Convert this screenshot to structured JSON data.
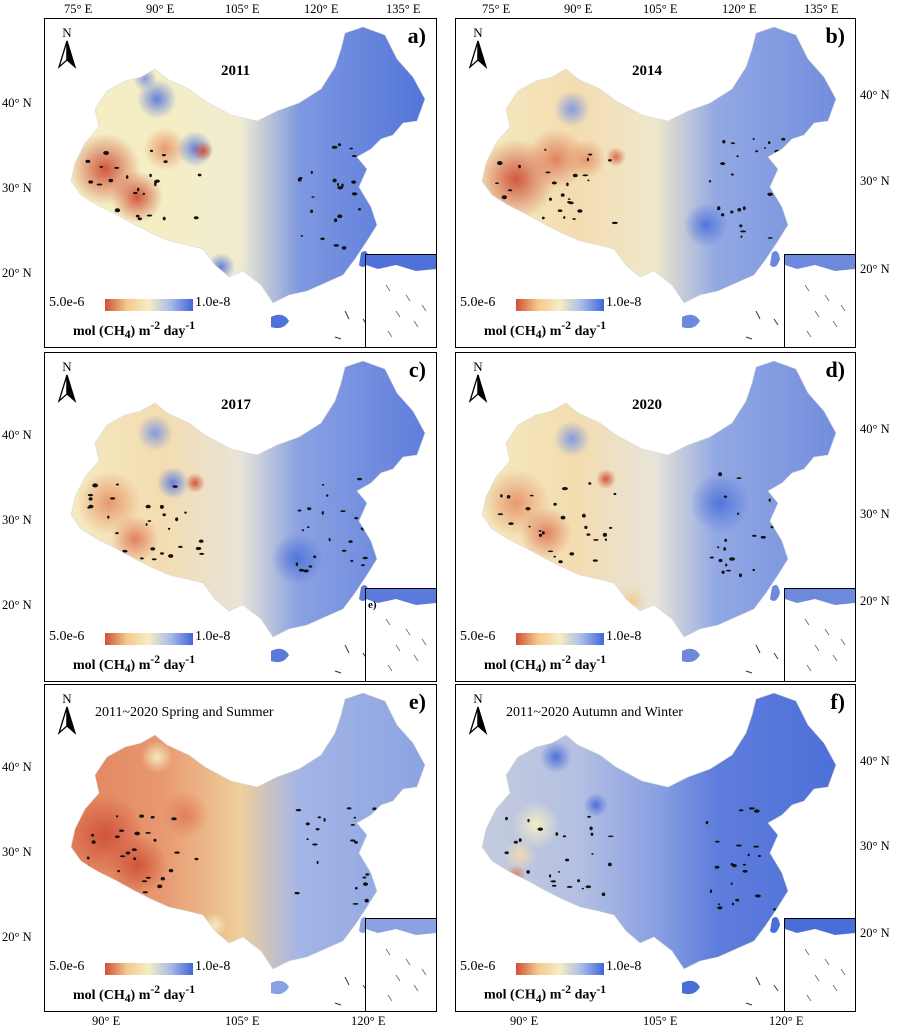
{
  "axes": {
    "top_longitudes": [
      "75° E",
      "90° E",
      "105° E",
      "120° E",
      "135° E"
    ],
    "bottom_longitudes": [
      "90° E",
      "105° E",
      "120° E"
    ],
    "left_latitudes": [
      "40° N",
      "30° N",
      "20° N"
    ],
    "right_latitudes": [
      "40° N",
      "30° N",
      "20° N"
    ]
  },
  "legend": {
    "min": "5.0e-6",
    "max": "1.0e-8",
    "unit_main": "mol (CH",
    "unit_sub": "4",
    "unit_mid": ") m",
    "unit_sup1": "-2",
    "unit_day": " day",
    "unit_sup2": "-1"
  },
  "panels": [
    {
      "letter": "a)",
      "title": "2011",
      "scheme": "a",
      "inset_label": ""
    },
    {
      "letter": "b)",
      "title": "2014",
      "scheme": "b",
      "inset_label": ""
    },
    {
      "letter": "c)",
      "title": "2017",
      "scheme": "c",
      "inset_label": "e)"
    },
    {
      "letter": "d)",
      "title": "2020",
      "scheme": "d",
      "inset_label": ""
    },
    {
      "letter": "e)",
      "title": "2011~2020 Spring and Summer",
      "scheme": "e",
      "inset_label": ""
    },
    {
      "letter": "f)",
      "title": "2011~2020 Autumn and Winter",
      "scheme": "f",
      "inset_label": ""
    }
  ],
  "colors": {
    "low_red": "#cf5038",
    "mid_yellow": "#f5eec4",
    "high_blue": "#3f66d8"
  }
}
